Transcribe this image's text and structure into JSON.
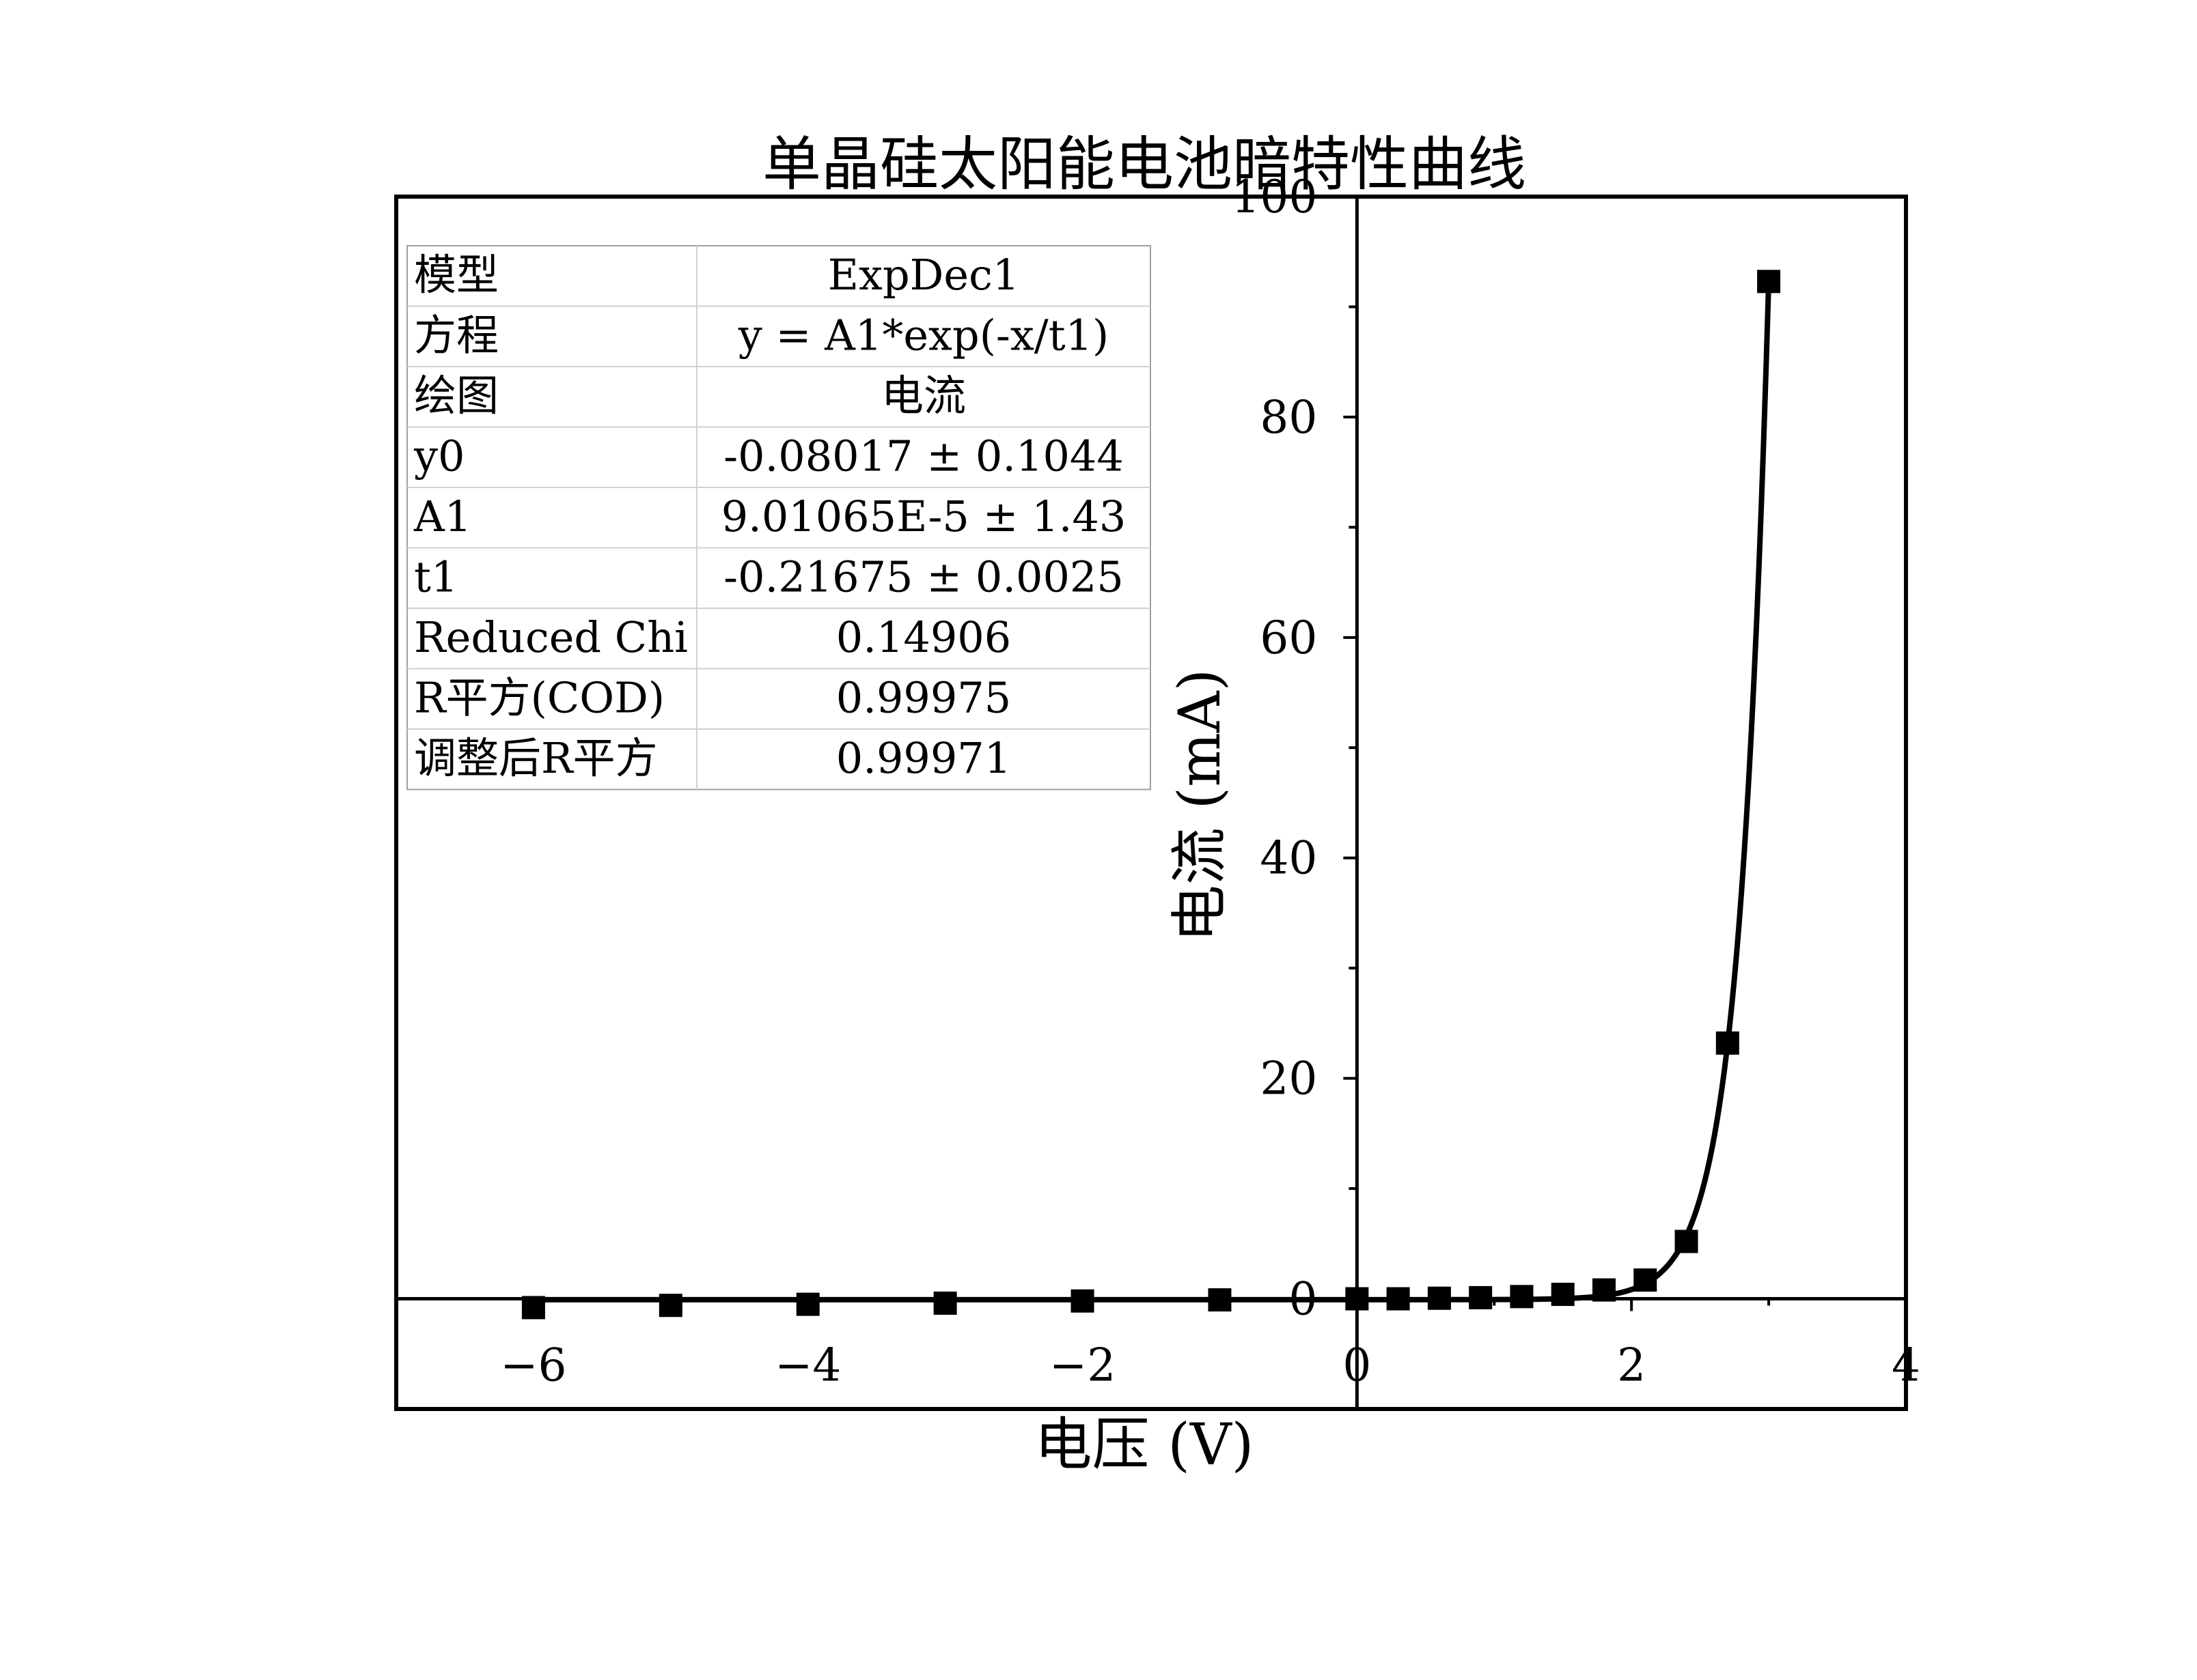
{
  "chart_data": {
    "type": "scatter",
    "title": "单晶硅太阳能电池暗特性曲线",
    "xlabel": "电压 (V)",
    "ylabel": "电流 (mA)",
    "xlim": [
      -7,
      4
    ],
    "ylim": [
      -10,
      100
    ],
    "xticks": [
      -6,
      -4,
      -2,
      0,
      2,
      4
    ],
    "xtick_labels": [
      "−6",
      "−4",
      "−2",
      "0",
      "2",
      "4"
    ],
    "yticks": [
      0,
      20,
      40,
      60,
      80,
      100
    ],
    "ytick_labels": [
      "0",
      "20",
      "40",
      "60",
      "80",
      "100"
    ],
    "grid": false,
    "series": [
      {
        "marker": "square",
        "color": "#000000",
        "x": [
          -6,
          -5,
          -4,
          -3,
          -2,
          -1,
          0,
          0.3,
          0.6,
          0.9,
          1.2,
          1.5,
          1.8,
          2.1,
          2.4,
          2.7,
          3.0
        ],
        "y": [
          -0.8,
          -0.6,
          -0.5,
          -0.4,
          -0.2,
          -0.1,
          0.0,
          0.0,
          0.05,
          0.1,
          0.2,
          0.4,
          0.8,
          1.7,
          5.2,
          23.2,
          92.3
        ]
      }
    ],
    "fit": {
      "model": "ExpDec1",
      "y0": -0.08017,
      "A1": 9.01065e-05,
      "t1": -0.21675,
      "color": "#000000"
    },
    "fit_table": [
      [
        "模型",
        "ExpDec1"
      ],
      [
        "方程",
        "y = A1*exp(-x/t1)"
      ],
      [
        "绘图",
        "电流"
      ],
      [
        "y0",
        "-0.08017 ± 0.1044"
      ],
      [
        "A1",
        "9.01065E-5 ± 1.43"
      ],
      [
        "t1",
        "-0.21675 ± 0.0025"
      ],
      [
        "Reduced Chi",
        "0.14906"
      ],
      [
        "R平方(COD)",
        "0.99975"
      ],
      [
        "调整后R平方",
        "0.99971"
      ]
    ]
  }
}
